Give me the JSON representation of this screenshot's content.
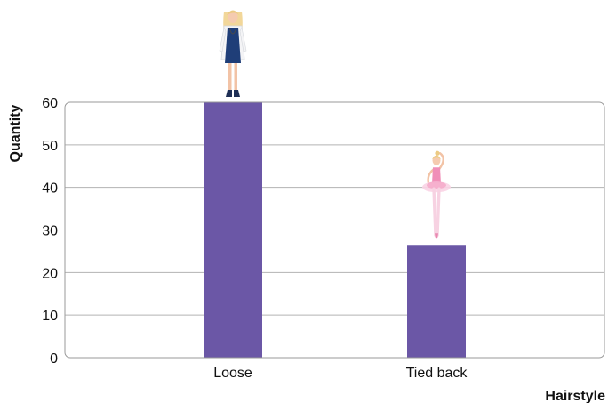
{
  "chart_data": {
    "type": "bar",
    "title": "",
    "xlabel": "Hairstyle",
    "ylabel": "Quantity",
    "categories": [
      "Loose",
      "Tied back"
    ],
    "values": [
      60,
      26.5
    ],
    "ylim": [
      0,
      60
    ],
    "yticks": [
      "0",
      "10",
      "20",
      "30",
      "40",
      "50",
      "60"
    ],
    "grid": true,
    "legend": "none",
    "bar_color": "#6b57a6",
    "grid_color": "#b3b3b3",
    "frame_color": "#9a9a9a",
    "marker_icons": [
      "doctor-doll-icon",
      "ballerina-doll-icon"
    ]
  }
}
